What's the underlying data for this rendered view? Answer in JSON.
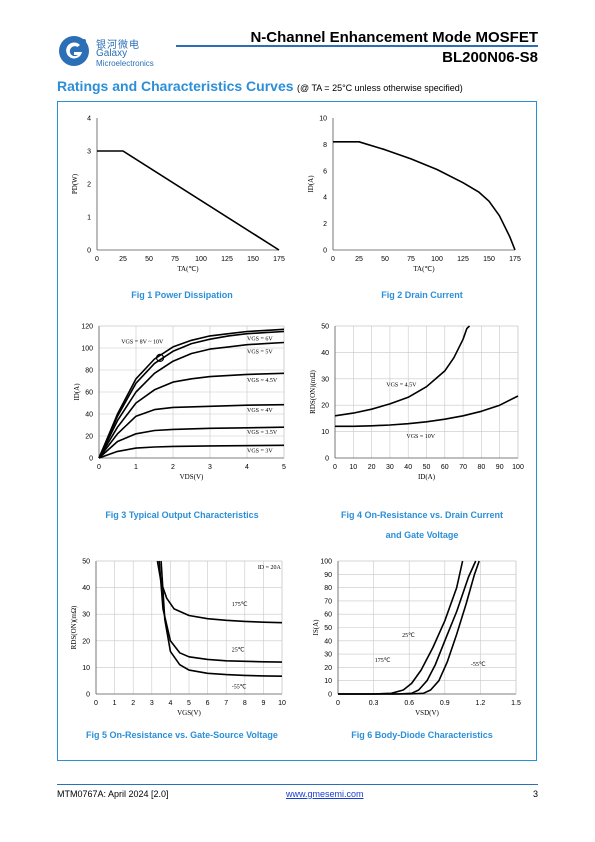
{
  "header": {
    "company_cn": "银河微电",
    "company_en": "Galaxy",
    "company_sub": "Microelectronics",
    "doc_title": "N-Channel Enhancement Mode MOSFET",
    "part_number": "BL200N06-S8",
    "brand_color": "#2b6fb6"
  },
  "section": {
    "title": "Ratings and Characteristics Curves",
    "condition": "(@ TA = 25°C unless otherwise specified)"
  },
  "footer": {
    "doc_id": "MTM0767A: April 2024 [2.0]",
    "url": "www.gmesemi.com",
    "page": "3"
  },
  "chart_data": [
    {
      "id": "fig1",
      "type": "line",
      "caption": "Fig 1    Power Dissipation",
      "xlabel": "TA(℃)",
      "ylabel": "PD(W)",
      "xlim": [
        0,
        175
      ],
      "ylim": [
        0,
        4
      ],
      "xticks": [
        "0",
        "25",
        "50",
        "75",
        "100",
        "125",
        "150",
        "175"
      ],
      "yticks": [
        "0",
        "1",
        "2",
        "3",
        "4"
      ],
      "grid": false,
      "series": [
        {
          "x": [
            0,
            25,
            175
          ],
          "y": [
            3,
            3,
            0
          ]
        }
      ]
    },
    {
      "id": "fig2",
      "type": "line",
      "caption": "Fig 2    Drain Current",
      "xlabel": "TA(℃)",
      "ylabel": "ID(A)",
      "xlim": [
        0,
        175
      ],
      "ylim": [
        0,
        10
      ],
      "xticks": [
        "0",
        "25",
        "50",
        "75",
        "100",
        "125",
        "150",
        "175"
      ],
      "yticks": [
        "0",
        "2",
        "4",
        "6",
        "8",
        "10"
      ],
      "grid": false,
      "series": [
        {
          "x": [
            0,
            25,
            50,
            75,
            100,
            125,
            140,
            150,
            160,
            170,
            175
          ],
          "y": [
            8.2,
            8.2,
            7.6,
            6.9,
            6.1,
            5.1,
            4.4,
            3.7,
            2.6,
            1.0,
            0
          ]
        }
      ]
    },
    {
      "id": "fig3",
      "type": "line",
      "caption": "Fig 3    Typical Output Characteristics",
      "xlabel": "VDS(V)",
      "ylabel": "ID(A)",
      "xlim": [
        0,
        5
      ],
      "ylim": [
        0,
        120
      ],
      "xticks": [
        "0",
        "1",
        "2",
        "3",
        "4",
        "5"
      ],
      "yticks": [
        "0",
        "20",
        "40",
        "60",
        "80",
        "100",
        "120"
      ],
      "grid": true,
      "annotations": [
        {
          "text": "VGS = 8V ~ 10V",
          "x": 0.6,
          "y": 104
        },
        {
          "text": "VGS = 6V",
          "x": 4.0,
          "y": 107
        },
        {
          "text": "VGS = 5V",
          "x": 4.0,
          "y": 95
        },
        {
          "text": "VGS = 4.5V",
          "x": 4.0,
          "y": 69
        },
        {
          "text": "VGS = 4V",
          "x": 4.0,
          "y": 42
        },
        {
          "text": "VGS = 3.5V",
          "x": 4.0,
          "y": 22
        },
        {
          "text": "VGS = 3V",
          "x": 4.0,
          "y": 5
        }
      ],
      "series": [
        {
          "name": "VGS = 8V ~ 10V",
          "x": [
            0,
            0.5,
            1.0,
            1.5,
            2.0,
            2.5,
            3.0,
            3.5,
            4.0,
            4.5,
            5.0
          ],
          "y": [
            0,
            40,
            72,
            90,
            101,
            107,
            111,
            113,
            115,
            116,
            117
          ]
        },
        {
          "name": "VGS = 6V",
          "x": [
            0,
            0.5,
            1.0,
            1.5,
            2.0,
            2.5,
            3.0,
            3.5,
            4.0,
            4.5,
            5.0
          ],
          "y": [
            0,
            38,
            68,
            86,
            97,
            104,
            108,
            111,
            113,
            114,
            115
          ]
        },
        {
          "name": "VGS = 5V",
          "x": [
            0,
            0.5,
            1.0,
            1.5,
            2.0,
            2.5,
            3.0,
            3.5,
            4.0,
            4.5,
            5.0
          ],
          "y": [
            0,
            34,
            60,
            77,
            88,
            95,
            99,
            101,
            103,
            104,
            105
          ]
        },
        {
          "name": "VGS = 4.5V",
          "x": [
            0,
            0.5,
            1.0,
            1.5,
            2.0,
            2.5,
            3.0,
            4.0,
            5.0
          ],
          "y": [
            0,
            28,
            50,
            62,
            69,
            72,
            74,
            76,
            77
          ]
        },
        {
          "name": "VGS = 4V",
          "x": [
            0,
            0.5,
            1.0,
            1.5,
            2.0,
            3.0,
            4.0,
            5.0
          ],
          "y": [
            0,
            22,
            38,
            44,
            46,
            47,
            48,
            48.5
          ]
        },
        {
          "name": "VGS = 3.5V",
          "x": [
            0,
            0.5,
            1.0,
            1.5,
            2.0,
            3.0,
            4.0,
            5.0
          ],
          "y": [
            0,
            15,
            22,
            25,
            26,
            27,
            27.5,
            28
          ]
        },
        {
          "name": "VGS = 3V",
          "x": [
            0,
            0.5,
            1.0,
            1.5,
            2.0,
            3.0,
            5.0
          ],
          "y": [
            0,
            6,
            9,
            10,
            10.5,
            11,
            11.5
          ]
        }
      ]
    },
    {
      "id": "fig4",
      "type": "line",
      "caption": "Fig 4    On-Resistance vs. Drain Current",
      "caption2": "and Gate Voltage",
      "xlabel": "ID(A)",
      "ylabel": "RDS(ON)(mΩ)",
      "xlim": [
        0,
        100
      ],
      "ylim": [
        0,
        50
      ],
      "xticks": [
        "0",
        "10",
        "20",
        "30",
        "40",
        "50",
        "60",
        "70",
        "80",
        "90",
        "100"
      ],
      "yticks": [
        "0",
        "10",
        "20",
        "30",
        "40",
        "50"
      ],
      "grid": true,
      "annotations": [
        {
          "text": "VGS = 4.5V",
          "x": 28,
          "y": 27
        },
        {
          "text": "VGS = 10V",
          "x": 39,
          "y": 7.5
        }
      ],
      "series": [
        {
          "name": "VGS = 4.5V",
          "x": [
            0,
            10,
            20,
            30,
            40,
            50,
            60,
            65,
            70,
            72,
            73.5
          ],
          "y": [
            16,
            17,
            18.5,
            20.5,
            23,
            27,
            33,
            38,
            45,
            49,
            50
          ]
        },
        {
          "name": "VGS = 10V",
          "x": [
            0,
            10,
            20,
            30,
            40,
            50,
            60,
            70,
            80,
            90,
            100
          ],
          "y": [
            12,
            12,
            12.2,
            12.5,
            13,
            13.7,
            14.7,
            16,
            17.7,
            20,
            23.5
          ]
        }
      ]
    },
    {
      "id": "fig5",
      "type": "line",
      "caption": "Fig 5    On-Resistance vs. Gate-Source Voltage",
      "xlabel": "VGS(V)",
      "ylabel": "RDS(ON)(mΩ)",
      "xlim": [
        0,
        10
      ],
      "ylim": [
        0,
        50
      ],
      "xticks": [
        "0",
        "1",
        "2",
        "3",
        "4",
        "5",
        "6",
        "7",
        "8",
        "9",
        "10"
      ],
      "yticks": [
        "0",
        "10",
        "20",
        "30",
        "40",
        "50"
      ],
      "grid": true,
      "annotations": [
        {
          "text": "ID = 20A",
          "x": 8.7,
          "y": 47
        },
        {
          "text": "175℃",
          "x": 7.3,
          "y": 33
        },
        {
          "text": "25℃",
          "x": 7.3,
          "y": 16
        },
        {
          "text": "-55℃",
          "x": 7.3,
          "y": 2
        }
      ],
      "series": [
        {
          "name": "175℃",
          "x": [
            3.3,
            3.5,
            3.8,
            4.2,
            5,
            6,
            7,
            8,
            9,
            10
          ],
          "y": [
            50,
            42,
            36,
            32,
            29.5,
            28.3,
            27.7,
            27.3,
            27,
            26.8
          ]
        },
        {
          "name": "25℃",
          "x": [
            3.4,
            3.6,
            4.0,
            4.5,
            5,
            6,
            7,
            8,
            9,
            10
          ],
          "y": [
            50,
            32,
            20,
            15.5,
            14,
            13,
            12.5,
            12.3,
            12.1,
            12
          ]
        },
        {
          "name": "-55℃",
          "x": [
            3.5,
            3.7,
            4.0,
            4.5,
            5,
            6,
            7,
            8,
            9,
            10
          ],
          "y": [
            50,
            28,
            16,
            11,
            9,
            7.8,
            7.3,
            7,
            6.8,
            6.7
          ]
        }
      ]
    },
    {
      "id": "fig6",
      "type": "line",
      "caption": "Fig 6    Body-Diode Characteristics",
      "xlabel": "VSD(V)",
      "ylabel": "IS(A)",
      "xlim": [
        0,
        1.5
      ],
      "ylim": [
        0,
        100
      ],
      "xticks": [
        "0",
        "0.3",
        "0.6",
        "0.9",
        "1.2",
        "1.5"
      ],
      "yticks": [
        "0",
        "10",
        "20",
        "30",
        "40",
        "50",
        "60",
        "70",
        "80",
        "90",
        "100"
      ],
      "grid": true,
      "annotations": [
        {
          "text": "175℃",
          "x": 0.31,
          "y": 24
        },
        {
          "text": "25℃",
          "x": 0.54,
          "y": 43
        },
        {
          "text": "-55℃",
          "x": 1.12,
          "y": 21
        }
      ],
      "series": [
        {
          "name": "175℃",
          "x": [
            0,
            0.3,
            0.45,
            0.55,
            0.62,
            0.7,
            0.8,
            0.9,
            1.0,
            1.05
          ],
          "y": [
            0,
            0,
            0.5,
            3,
            8,
            18,
            35,
            55,
            80,
            100
          ]
        },
        {
          "name": "25℃",
          "x": [
            0,
            0.5,
            0.62,
            0.68,
            0.75,
            0.82,
            0.9,
            1.0,
            1.1,
            1.16
          ],
          "y": [
            0,
            0,
            0.5,
            3,
            10,
            22,
            40,
            62,
            88,
            100
          ]
        },
        {
          "name": "-55℃",
          "x": [
            0,
            0.6,
            0.72,
            0.78,
            0.85,
            0.92,
            1.0,
            1.08,
            1.15,
            1.19
          ],
          "y": [
            0,
            0,
            0.5,
            3,
            10,
            24,
            45,
            68,
            90,
            100
          ]
        }
      ]
    }
  ]
}
